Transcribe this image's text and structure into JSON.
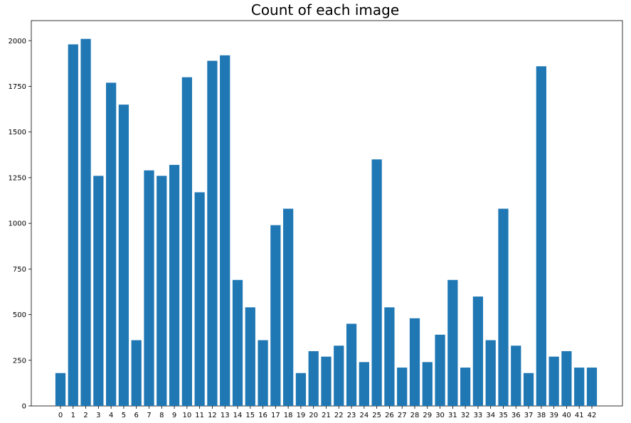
{
  "chart_data": {
    "type": "bar",
    "title": "Count of each image",
    "xlabel": "",
    "ylabel": "",
    "categories": [
      "0",
      "1",
      "2",
      "3",
      "4",
      "5",
      "6",
      "7",
      "8",
      "9",
      "10",
      "11",
      "12",
      "13",
      "14",
      "15",
      "16",
      "17",
      "18",
      "19",
      "20",
      "21",
      "22",
      "23",
      "24",
      "25",
      "26",
      "27",
      "28",
      "29",
      "30",
      "31",
      "32",
      "33",
      "34",
      "35",
      "36",
      "37",
      "38",
      "39",
      "40",
      "41",
      "42"
    ],
    "values": [
      180,
      1980,
      2010,
      1260,
      1770,
      1650,
      360,
      1290,
      1260,
      1320,
      1800,
      1170,
      1890,
      1920,
      690,
      540,
      360,
      990,
      1080,
      180,
      300,
      270,
      330,
      450,
      240,
      1350,
      540,
      210,
      480,
      240,
      390,
      690,
      210,
      599,
      360,
      1080,
      330,
      180,
      1860,
      270,
      300,
      210,
      210
    ],
    "ylim": [
      0,
      2110
    ],
    "yticks": [
      0,
      250,
      500,
      750,
      1000,
      1250,
      1500,
      1750,
      2000
    ],
    "grid": false,
    "bar_color": "#1f77b4"
  }
}
